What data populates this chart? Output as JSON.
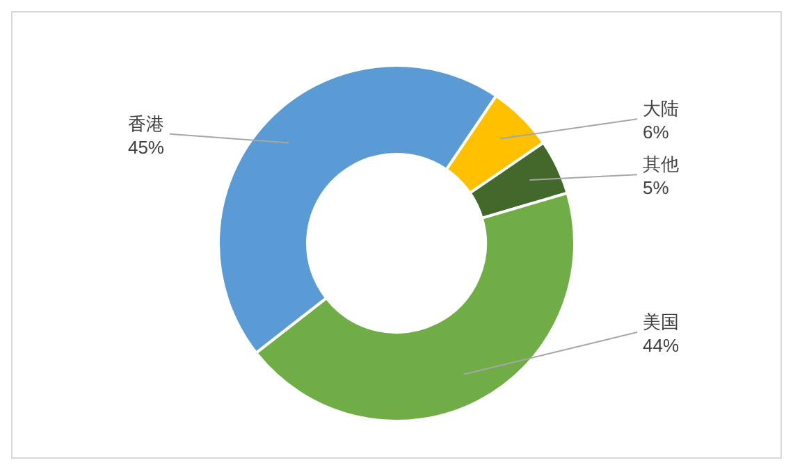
{
  "chart_data": {
    "type": "donut",
    "categories": [
      "大陆",
      "其他",
      "美国",
      "香港"
    ],
    "values": [
      6,
      5,
      44,
      45
    ],
    "value_labels": [
      "6%",
      "5%",
      "44%",
      "45%"
    ],
    "colors": [
      "#ffc000",
      "#43682b",
      "#70ad47",
      "#5b9bd5"
    ]
  }
}
